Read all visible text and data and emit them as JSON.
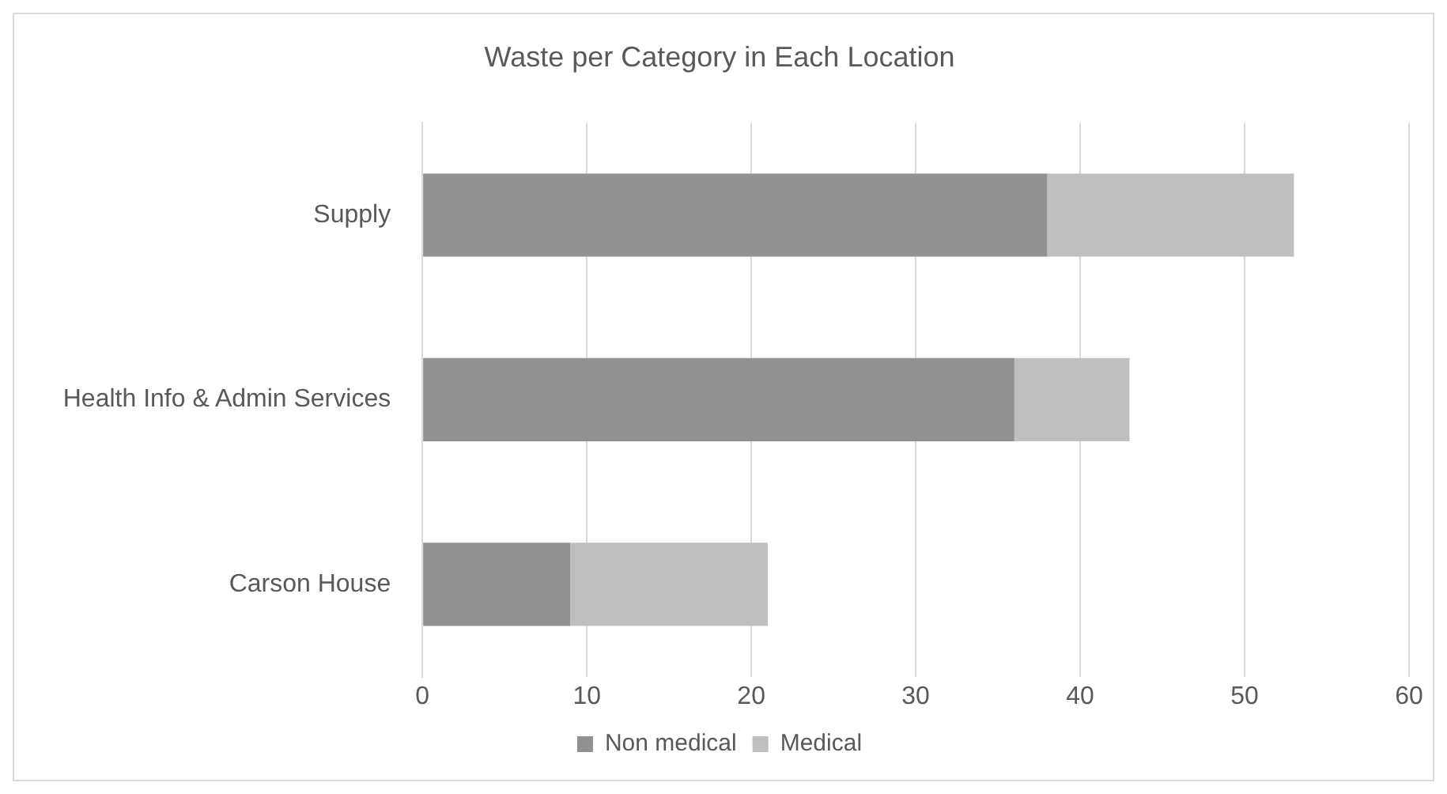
{
  "chart_data": {
    "type": "bar",
    "orientation": "horizontal",
    "stacked": true,
    "title": "Waste per Category in Each Location",
    "categories": [
      "Supply",
      "Health Info & Admin Services",
      "Carson House"
    ],
    "series": [
      {
        "name": "Non medical",
        "color": "#919191",
        "values": [
          38,
          36,
          9
        ]
      },
      {
        "name": "Medical",
        "color": "#bfbfbf",
        "values": [
          15,
          7,
          12
        ]
      }
    ],
    "xlim": [
      0,
      60
    ],
    "xticks": [
      0,
      10,
      20,
      30,
      40,
      50,
      60
    ],
    "grid": "x",
    "legend": "bottom"
  }
}
